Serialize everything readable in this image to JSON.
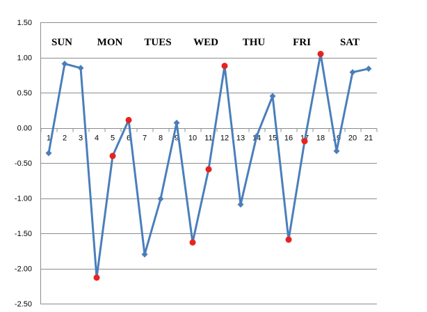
{
  "chart_data": {
    "type": "line",
    "title": "",
    "xlabel": "",
    "ylabel": "",
    "ylim": [
      -2.5,
      1.5
    ],
    "yticks": [
      1.5,
      1.0,
      0.5,
      0.0,
      -0.5,
      -1.0,
      -1.5,
      -2.0,
      -2.5
    ],
    "ytick_labels": [
      "1.50",
      "1.00",
      "0.50",
      "0.00",
      "-0.50",
      "-1.00",
      "-1.50",
      "-2.00",
      "-2.50"
    ],
    "x": [
      1,
      2,
      3,
      4,
      5,
      6,
      7,
      8,
      9,
      10,
      11,
      12,
      13,
      14,
      15,
      16,
      17,
      18,
      19,
      20,
      21
    ],
    "xtick_labels": [
      "1",
      "2",
      "3",
      "4",
      "5",
      "6",
      "7",
      "8",
      "9",
      "10",
      "11",
      "12",
      "13",
      "14",
      "15",
      "16",
      "17",
      "18",
      "19",
      "20",
      "21"
    ],
    "series": [
      {
        "values": [
          -0.36,
          0.91,
          0.85,
          -2.13,
          -0.4,
          0.11,
          -1.8,
          -1.01,
          0.07,
          -1.63,
          -0.59,
          0.88,
          -1.09,
          -0.12,
          0.45,
          -1.59,
          -0.19,
          1.05,
          -0.33,
          0.79,
          0.84
        ],
        "color": "#4a7ebb",
        "marker": "diamond"
      }
    ],
    "highlighted_points": [
      4,
      5,
      6,
      10,
      11,
      12,
      16,
      17,
      18
    ],
    "highlight_color": "#e8231f",
    "day_labels": [
      {
        "text": "SUN",
        "x": 2
      },
      {
        "text": "MON",
        "x": 5
      },
      {
        "text": "TUES",
        "x": 8
      },
      {
        "text": "WED",
        "x": 11
      },
      {
        "text": "THU",
        "x": 14
      },
      {
        "text": "FRI",
        "x": 17
      },
      {
        "text": "SAT",
        "x": 20
      }
    ],
    "grid": true
  }
}
